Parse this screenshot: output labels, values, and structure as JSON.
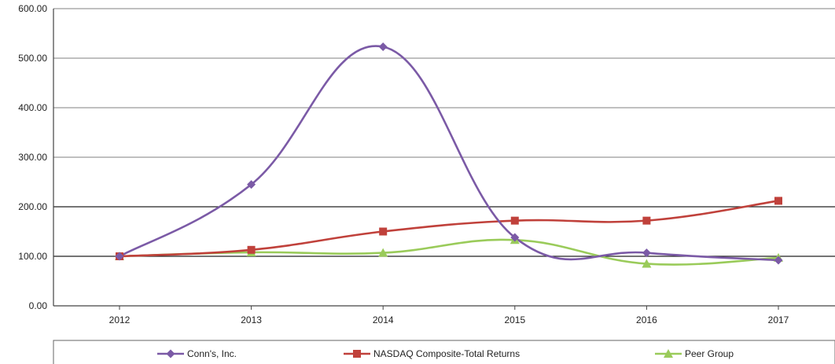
{
  "chart_data": {
    "type": "line",
    "categories": [
      "2012",
      "2013",
      "2014",
      "2015",
      "2016",
      "2017"
    ],
    "ylim": [
      0,
      600
    ],
    "yticks": [
      "0.00",
      "100.00",
      "200.00",
      "300.00",
      "400.00",
      "500.00",
      "600.00"
    ],
    "grid": true,
    "legend_position": "bottom",
    "series": [
      {
        "name": "Conn's, Inc.",
        "color": "#7b5aa6",
        "marker": "diamond",
        "values": [
          100,
          245,
          523,
          138,
          107,
          92
        ]
      },
      {
        "name": "NASDAQ Composite-Total Returns",
        "color": "#c0413b",
        "marker": "square",
        "values": [
          100,
          113,
          150,
          172,
          172,
          212
        ]
      },
      {
        "name": "Peer Group",
        "color": "#9acb5a",
        "marker": "triangle",
        "values": [
          100,
          108,
          107,
          133,
          85,
          97
        ]
      }
    ]
  }
}
